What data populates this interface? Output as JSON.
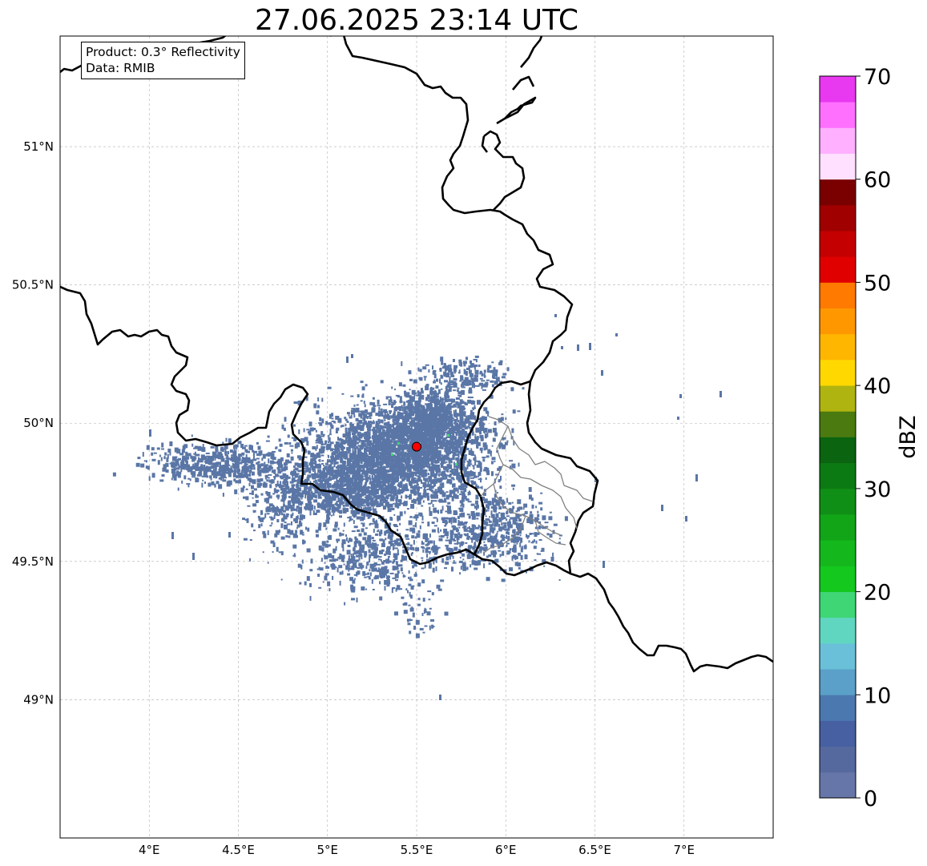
{
  "title": "27.06.2025 23:14 UTC",
  "info_box": {
    "product_line": "Product: 0.3° Reflectivity",
    "data_line": "Data: RMIB"
  },
  "map": {
    "extent_lon": [
      3.5,
      7.5
    ],
    "extent_lat": [
      48.5,
      51.4
    ],
    "x_ticks": [
      {
        "value": 4.0,
        "label": "4°E"
      },
      {
        "value": 4.5,
        "label": "4.5°E"
      },
      {
        "value": 5.0,
        "label": "5°E"
      },
      {
        "value": 5.5,
        "label": "5.5°E"
      },
      {
        "value": 6.0,
        "label": "6°E"
      },
      {
        "value": 6.5,
        "label": "6.5°E"
      },
      {
        "value": 7.0,
        "label": "7°E"
      }
    ],
    "y_ticks": [
      {
        "value": 51.0,
        "label": "51°N"
      },
      {
        "value": 50.5,
        "label": "50.5°N"
      },
      {
        "value": 50.0,
        "label": "50°N"
      },
      {
        "value": 49.5,
        "label": "49.5°N"
      },
      {
        "value": 49.0,
        "label": "49°N"
      }
    ],
    "grid": true,
    "radar_site": {
      "lon": 5.5,
      "lat": 49.915,
      "color": "#ff0000"
    },
    "echo_color": "#5a76a6",
    "border_color": "#000000",
    "admin_border_color": "#808080"
  },
  "colorbar": {
    "label": "dBZ",
    "min": 0,
    "max": 70,
    "ticks": [
      {
        "value": 0,
        "label": "0"
      },
      {
        "value": 10,
        "label": "10"
      },
      {
        "value": 20,
        "label": "20"
      },
      {
        "value": 30,
        "label": "30"
      },
      {
        "value": 40,
        "label": "40"
      },
      {
        "value": 50,
        "label": "50"
      },
      {
        "value": 60,
        "label": "60"
      },
      {
        "value": 70,
        "label": "70"
      }
    ],
    "colors": [
      "#6676a8",
      "#56699f",
      "#4660a2",
      "#4c78b0",
      "#5aa0c8",
      "#6ac0d8",
      "#60d6c0",
      "#3fd676",
      "#14c81e",
      "#14b81c",
      "#12a518",
      "#108f16",
      "#0c7a12",
      "#0a6410",
      "#4a7a10",
      "#b0b410",
      "#ffd800",
      "#ffb600",
      "#ff9800",
      "#ff7a00",
      "#e00000",
      "#c40000",
      "#a00000",
      "#7a0000",
      "#ffe0ff",
      "#ffb0ff",
      "#ff70ff",
      "#e838f0"
    ]
  }
}
